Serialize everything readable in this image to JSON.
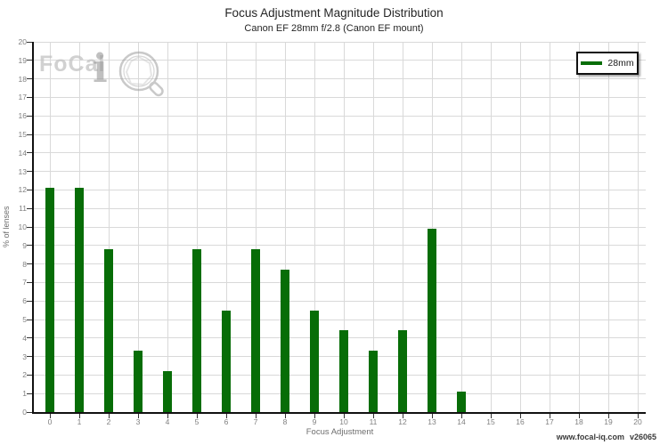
{
  "header": {
    "title": "Focus Adjustment Magnitude Distribution",
    "subtitle": "Canon EF 28mm f/2.8 (Canon EF mount)"
  },
  "legend": {
    "label": "28mm",
    "swatch_color": "#076d07"
  },
  "watermark": {
    "brand": "FoCal",
    "mark_letter": "i"
  },
  "axes": {
    "x_label": "Focus Adjustment",
    "y_label": "% of lenses"
  },
  "footer": {
    "url": "www.focal-iq.com",
    "version": "v26065"
  },
  "colors": {
    "bar": "#076d07",
    "grid": "#d9d9d9",
    "axis": "#111111",
    "tick_label": "#7f7f7f",
    "watermark_orange": "#ddaa66"
  },
  "chart_data": {
    "type": "bar",
    "title": "Focus Adjustment Magnitude Distribution",
    "subtitle": "Canon EF 28mm f/2.8 (Canon EF mount)",
    "xlabel": "Focus Adjustment",
    "ylabel": "% of lenses",
    "xlim": [
      0,
      20
    ],
    "ylim": [
      0,
      20
    ],
    "grid": true,
    "legend_position": "top-right",
    "xticks": [
      "0",
      "1",
      "2",
      "3",
      "4",
      "5",
      "6",
      "7",
      "8",
      "9",
      "10",
      "11",
      "12",
      "13",
      "14",
      "15",
      "16",
      "17",
      "18",
      "19",
      "20"
    ],
    "yticks": [
      "0",
      "1",
      "2",
      "3",
      "4",
      "5",
      "6",
      "7",
      "8",
      "9",
      "10",
      "11",
      "12",
      "13",
      "14",
      "15",
      "16",
      "17",
      "18",
      "19",
      "20"
    ],
    "series": [
      {
        "name": "28mm",
        "color": "#076d07",
        "x": [
          0,
          1,
          2,
          3,
          4,
          5,
          6,
          7,
          8,
          9,
          10,
          11,
          12,
          13,
          14
        ],
        "values": [
          12.1,
          12.1,
          8.8,
          3.3,
          2.2,
          8.8,
          5.5,
          8.8,
          7.7,
          5.5,
          4.4,
          3.3,
          4.4,
          9.9,
          1.1
        ]
      }
    ]
  }
}
